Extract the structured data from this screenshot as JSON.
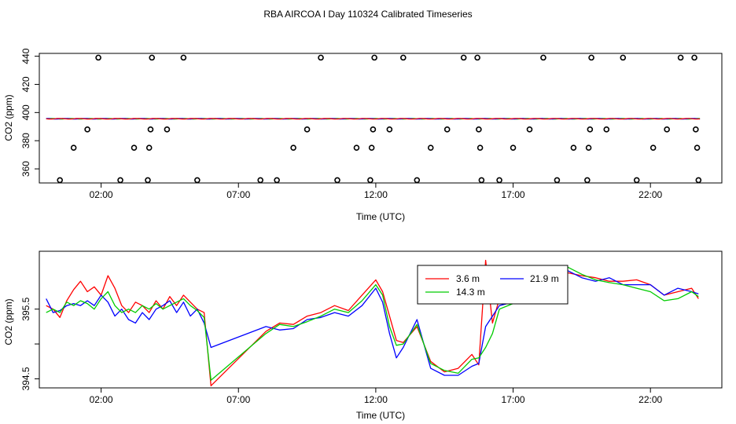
{
  "title": "RBA AIRCOA I  Day 110324  Calibrated Timeseries",
  "chart_data": [
    {
      "type": "scatter",
      "xlabel": "Time (UTC)",
      "ylabel": "CO2 (ppm)",
      "x_ticks": [
        "02:00",
        "07:00",
        "12:00",
        "17:00",
        "22:00"
      ],
      "x_tick_hours": [
        2,
        7,
        12,
        17,
        22
      ],
      "y_ticks": [
        360,
        380,
        400,
        420,
        440
      ],
      "xlim": [
        -0.25,
        24.6
      ],
      "ylim": [
        350,
        442
      ],
      "near_flat_line": {
        "start": 0.0,
        "end": 23.8,
        "value": 395.6
      },
      "outlier_points": [
        {
          "x": 0.5,
          "y": 352
        },
        {
          "x": 1.0,
          "y": 375
        },
        {
          "x": 1.5,
          "y": 388
        },
        {
          "x": 1.9,
          "y": 439
        },
        {
          "x": 2.7,
          "y": 352
        },
        {
          "x": 3.2,
          "y": 375
        },
        {
          "x": 3.7,
          "y": 352
        },
        {
          "x": 3.75,
          "y": 375
        },
        {
          "x": 3.8,
          "y": 388
        },
        {
          "x": 3.85,
          "y": 439
        },
        {
          "x": 4.4,
          "y": 388
        },
        {
          "x": 5.0,
          "y": 439
        },
        {
          "x": 5.5,
          "y": 352
        },
        {
          "x": 7.8,
          "y": 352
        },
        {
          "x": 8.4,
          "y": 352
        },
        {
          "x": 9.0,
          "y": 375
        },
        {
          "x": 9.5,
          "y": 388
        },
        {
          "x": 10.0,
          "y": 439
        },
        {
          "x": 10.6,
          "y": 352
        },
        {
          "x": 11.3,
          "y": 375
        },
        {
          "x": 11.8,
          "y": 352
        },
        {
          "x": 11.85,
          "y": 375
        },
        {
          "x": 11.9,
          "y": 388
        },
        {
          "x": 11.95,
          "y": 439
        },
        {
          "x": 12.5,
          "y": 388
        },
        {
          "x": 13.0,
          "y": 439
        },
        {
          "x": 13.5,
          "y": 352
        },
        {
          "x": 14.0,
          "y": 375
        },
        {
          "x": 14.6,
          "y": 388
        },
        {
          "x": 15.2,
          "y": 439
        },
        {
          "x": 15.7,
          "y": 439
        },
        {
          "x": 15.75,
          "y": 388
        },
        {
          "x": 15.8,
          "y": 375
        },
        {
          "x": 15.85,
          "y": 352
        },
        {
          "x": 16.5,
          "y": 352
        },
        {
          "x": 17.0,
          "y": 375
        },
        {
          "x": 17.6,
          "y": 388
        },
        {
          "x": 18.1,
          "y": 439
        },
        {
          "x": 18.6,
          "y": 352
        },
        {
          "x": 19.2,
          "y": 375
        },
        {
          "x": 19.7,
          "y": 352
        },
        {
          "x": 19.75,
          "y": 375
        },
        {
          "x": 19.8,
          "y": 388
        },
        {
          "x": 19.85,
          "y": 439
        },
        {
          "x": 20.4,
          "y": 388
        },
        {
          "x": 21.0,
          "y": 439
        },
        {
          "x": 21.5,
          "y": 352
        },
        {
          "x": 22.1,
          "y": 375
        },
        {
          "x": 22.6,
          "y": 388
        },
        {
          "x": 23.1,
          "y": 439
        },
        {
          "x": 23.6,
          "y": 439
        },
        {
          "x": 23.65,
          "y": 388
        },
        {
          "x": 23.7,
          "y": 375
        },
        {
          "x": 23.75,
          "y": 352
        }
      ]
    },
    {
      "type": "line",
      "xlabel": "Time (UTC)",
      "ylabel": "CO2 (ppm)",
      "x_ticks": [
        "02:00",
        "07:00",
        "12:00",
        "17:00",
        "22:00"
      ],
      "x_tick_hours": [
        2,
        7,
        12,
        17,
        22
      ],
      "y_ticks": [
        "394.5",
        "",
        "395.5"
      ],
      "y_tick_values": [
        394.5,
        395.0,
        395.5
      ],
      "xlim": [
        -0.25,
        24.6
      ],
      "ylim": [
        394.37,
        396.33
      ],
      "legend_position": "top-right",
      "series": [
        {
          "name": "3.6 m",
          "color": "#ff0000",
          "x": [
            0.0,
            0.25,
            0.5,
            0.75,
            1.0,
            1.25,
            1.5,
            1.75,
            2.0,
            2.25,
            2.5,
            2.75,
            3.0,
            3.25,
            3.5,
            3.75,
            4.0,
            4.25,
            4.5,
            4.75,
            5.0,
            5.25,
            5.5,
            5.75,
            6.0,
            8.0,
            8.5,
            9.0,
            9.5,
            10.0,
            10.5,
            11.0,
            11.5,
            12.0,
            12.25,
            12.5,
            12.75,
            13.0,
            13.5,
            14.0,
            14.5,
            15.0,
            15.5,
            15.75,
            16.0,
            16.25,
            16.5,
            17.0,
            17.5,
            18.0,
            18.5,
            19.0,
            19.5,
            20.0,
            20.5,
            21.0,
            21.5,
            22.0,
            22.5,
            23.0,
            23.5,
            23.75
          ],
          "values": [
            395.55,
            395.5,
            395.38,
            395.62,
            395.78,
            395.9,
            395.75,
            395.82,
            395.7,
            395.98,
            395.8,
            395.55,
            395.45,
            395.6,
            395.55,
            395.45,
            395.62,
            395.5,
            395.68,
            395.55,
            395.7,
            395.6,
            395.5,
            395.45,
            394.4,
            395.18,
            395.3,
            395.28,
            395.4,
            395.45,
            395.55,
            395.48,
            395.7,
            395.92,
            395.75,
            395.4,
            395.05,
            395.02,
            395.25,
            394.75,
            394.6,
            394.65,
            394.85,
            394.7,
            396.2,
            395.3,
            395.65,
            395.6,
            395.65,
            395.78,
            396.05,
            396.02,
            395.98,
            395.95,
            395.9,
            395.9,
            395.92,
            395.85,
            395.7,
            395.75,
            395.8,
            395.65
          ]
        },
        {
          "name": "21.9 m",
          "color": "#0000ff",
          "x": [
            0.0,
            0.25,
            0.5,
            0.75,
            1.0,
            1.25,
            1.5,
            1.75,
            2.0,
            2.25,
            2.5,
            2.75,
            3.0,
            3.25,
            3.5,
            3.75,
            4.0,
            4.25,
            4.5,
            4.75,
            5.0,
            5.25,
            5.5,
            5.75,
            6.0,
            8.0,
            8.5,
            9.0,
            9.5,
            10.0,
            10.5,
            11.0,
            11.5,
            12.0,
            12.25,
            12.5,
            12.75,
            13.0,
            13.5,
            14.0,
            14.5,
            15.0,
            15.5,
            15.75,
            16.0,
            16.25,
            16.5,
            17.0,
            17.5,
            18.0,
            18.5,
            19.0,
            19.5,
            20.0,
            20.5,
            21.0,
            21.5,
            22.0,
            22.5,
            23.0,
            23.5,
            23.75
          ],
          "values": [
            395.65,
            395.45,
            395.48,
            395.55,
            395.58,
            395.55,
            395.62,
            395.55,
            395.7,
            395.6,
            395.4,
            395.5,
            395.35,
            395.3,
            395.45,
            395.35,
            395.5,
            395.55,
            395.62,
            395.45,
            395.6,
            395.4,
            395.5,
            395.3,
            394.95,
            395.25,
            395.2,
            395.22,
            395.35,
            395.38,
            395.45,
            395.4,
            395.55,
            395.8,
            395.6,
            395.15,
            394.8,
            394.95,
            395.35,
            394.65,
            394.55,
            394.55,
            394.68,
            394.72,
            395.25,
            395.4,
            395.55,
            395.6,
            395.62,
            395.7,
            396.1,
            396.05,
            395.95,
            395.9,
            395.95,
            395.85,
            395.85,
            395.85,
            395.7,
            395.8,
            395.75,
            395.72
          ]
        },
        {
          "name": "14.3 m",
          "color": "#00cc00",
          "x": [
            0.0,
            0.25,
            0.5,
            0.75,
            1.0,
            1.25,
            1.5,
            1.75,
            2.0,
            2.25,
            2.5,
            2.75,
            3.0,
            3.25,
            3.5,
            3.75,
            4.0,
            4.25,
            4.5,
            4.75,
            5.0,
            5.25,
            5.5,
            5.75,
            6.0,
            8.0,
            8.5,
            9.0,
            9.5,
            10.0,
            10.5,
            11.0,
            11.5,
            12.0,
            12.25,
            12.5,
            12.75,
            13.0,
            13.5,
            14.0,
            14.5,
            15.0,
            15.5,
            15.75,
            16.0,
            16.25,
            16.5,
            17.0,
            17.5,
            18.0,
            18.5,
            19.0,
            19.5,
            20.0,
            20.5,
            21.0,
            21.5,
            22.0,
            22.5,
            23.0,
            23.5,
            23.75
          ],
          "values": [
            395.45,
            395.5,
            395.45,
            395.6,
            395.55,
            395.62,
            395.58,
            395.5,
            395.65,
            395.75,
            395.55,
            395.45,
            395.5,
            395.45,
            395.55,
            395.5,
            395.58,
            395.5,
            395.55,
            395.6,
            395.65,
            395.55,
            395.48,
            395.38,
            394.48,
            395.15,
            395.28,
            395.25,
            395.32,
            395.4,
            395.5,
            395.45,
            395.62,
            395.85,
            395.7,
            395.25,
            394.98,
            395.0,
            395.28,
            394.72,
            394.62,
            394.58,
            394.78,
            394.8,
            394.95,
            395.15,
            395.5,
            395.58,
            395.6,
            395.72,
            396.08,
            396.1,
            396.0,
            395.92,
            395.88,
            395.85,
            395.8,
            395.75,
            395.62,
            395.65,
            395.75,
            395.68
          ]
        }
      ]
    }
  ]
}
